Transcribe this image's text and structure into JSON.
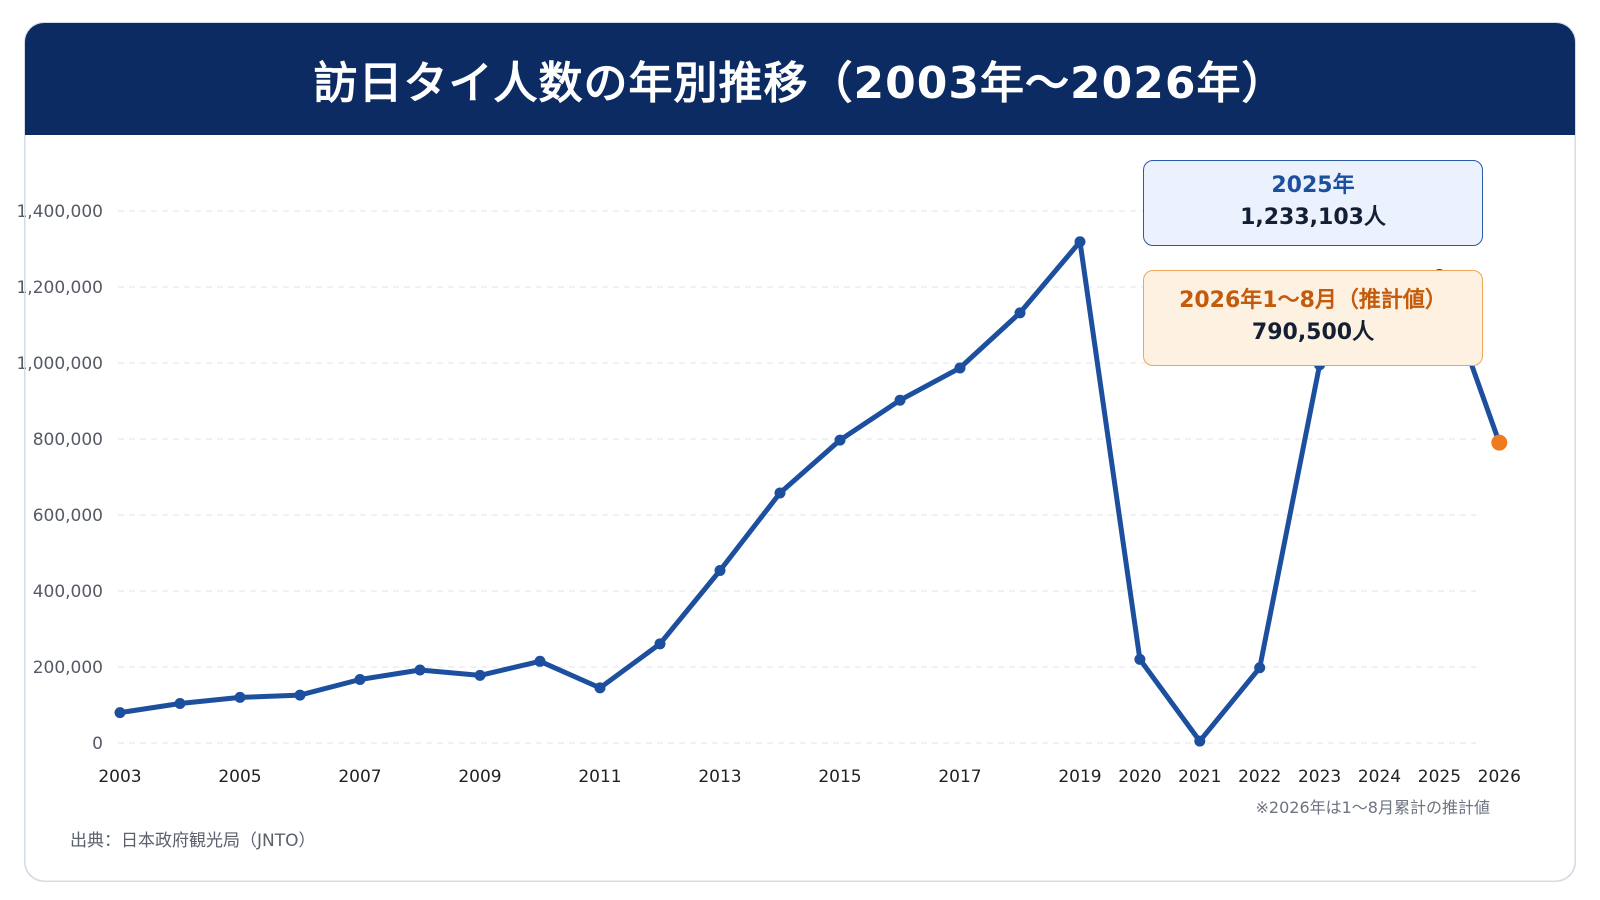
{
  "title": "訪日タイ人数の年別推移（2003年〜2026年）",
  "source": "出典：日本政府観光局（JNTO）",
  "note": "※2026年は1〜8月累計の推計値",
  "colors": {
    "header_bg": "#0d2b63",
    "line": "#1d4f9f",
    "estimate_point": "#f07a1e",
    "callout_blue_bg": "#ebf2fd",
    "callout_orange_bg": "#fdf1e2"
  },
  "callouts": [
    {
      "label": "2025年",
      "value": "1,233,103人",
      "style": "blue"
    },
    {
      "label": "2026年1〜8月（推計値）",
      "value": "790,500人",
      "style": "orange"
    }
  ],
  "chart_data": {
    "type": "line",
    "x": [
      2003,
      2004,
      2005,
      2006,
      2007,
      2008,
      2009,
      2010,
      2011,
      2012,
      2013,
      2014,
      2015,
      2016,
      2017,
      2018,
      2019,
      2020,
      2021,
      2022,
      2023,
      2024,
      2025,
      2026
    ],
    "values": [
      80000,
      104000,
      120000,
      126000,
      167000,
      192000,
      178000,
      215000,
      145000,
      261000,
      454000,
      658000,
      797000,
      902000,
      987000,
      1132000,
      1319000,
      220000,
      5000,
      198000,
      995000,
      1149000,
      1233103,
      790500
    ],
    "x_tick_labels": [
      "2003",
      "2005",
      "2007",
      "2009",
      "2011",
      "2013",
      "2015",
      "2017",
      "2019",
      "2020",
      "2021",
      "2022",
      "2023",
      "2024",
      "2025",
      "2026"
    ],
    "y_tick_labels": [
      "0",
      "200,000",
      "400,000",
      "600,000",
      "800,000",
      "1,000,000",
      "1,200,000",
      "1,400,000"
    ],
    "y_ticks": [
      0,
      200000,
      400000,
      600000,
      800000,
      1000000,
      1200000,
      1400000
    ],
    "ylim": [
      0,
      1400000
    ],
    "grid": true,
    "highlight_last_point": true,
    "title": "訪日タイ人数の年別推移（2003年〜2026年）",
    "xlabel": "",
    "ylabel": ""
  }
}
